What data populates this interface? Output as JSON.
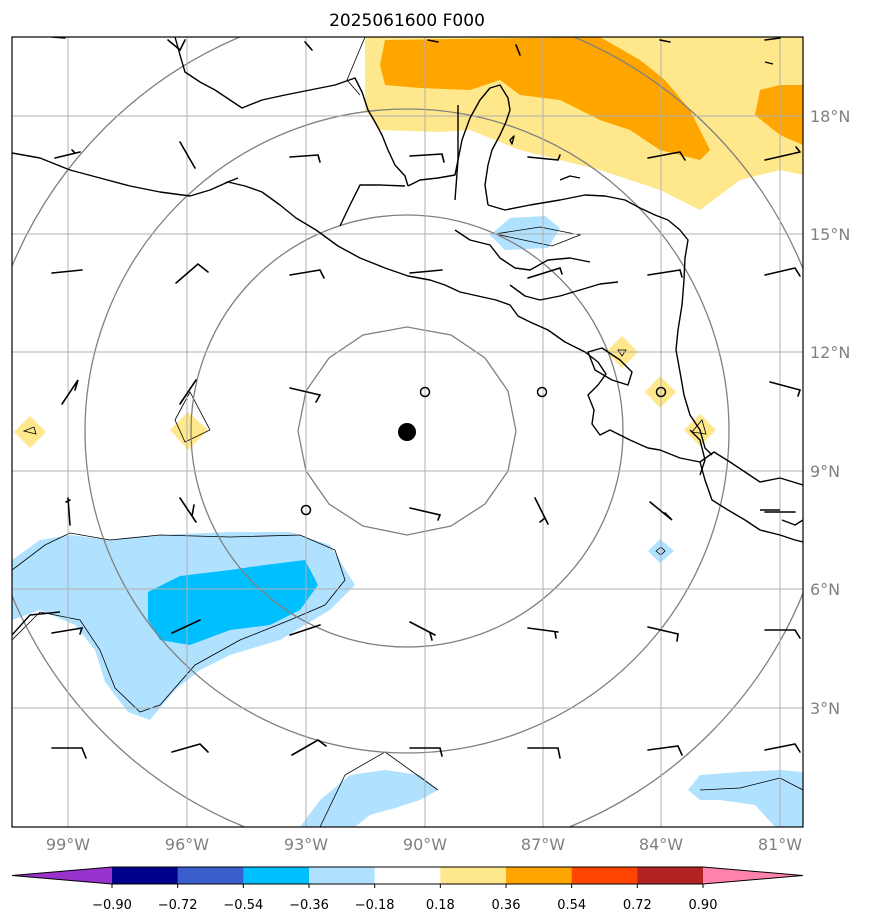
{
  "title": "2025061600 F000",
  "map": {
    "lon_labels": [
      "99°W",
      "96°W",
      "93°W",
      "90°W",
      "87°W",
      "84°W",
      "81°W"
    ],
    "lat_labels": [
      "18°N",
      "15°N",
      "12°N",
      "9°N",
      "6°N",
      "3°N"
    ],
    "center_marker": "storm-center-dot",
    "range_rings": 4,
    "grid": true
  },
  "colorbar": {
    "tick_labels": [
      "−0.90",
      "−0.72",
      "−0.54",
      "−0.36",
      "−0.18",
      "0.18",
      "0.36",
      "0.54",
      "0.72",
      "0.90"
    ],
    "colors": [
      "#9a32cd",
      "#00008b",
      "#3a5fcd",
      "#00bfff",
      "#b0e2ff",
      "#ffffff",
      "#ffe78c",
      "#ffa500",
      "#ff4500",
      "#b22222",
      "#ff82ab"
    ],
    "extend": "both"
  },
  "colors": {
    "grid": "#b0b0b0",
    "rings": "#808080",
    "coast": "#000000",
    "light_yellow": "#ffe78c",
    "orange": "#ffa500",
    "light_blue": "#b0e2ff",
    "deep_sky_blue": "#00bfff"
  }
}
